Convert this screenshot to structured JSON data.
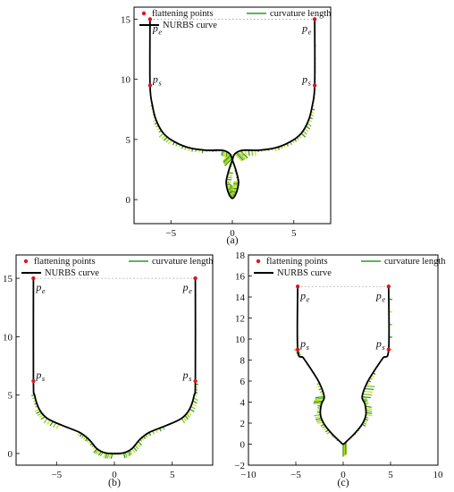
{
  "legend": {
    "flattening_points": "flattening points",
    "curvature_length": "curvature length",
    "nurbs_curve": "NURBS curve"
  },
  "colors": {
    "curve": "#000000",
    "points": "#e0141e",
    "comb_green": "#2a9a2a",
    "comb_yellow": "#d8e000",
    "comb_blue": "#3a78c8",
    "dotted": "#999999"
  },
  "labels": {
    "pe": "p",
    "pe_sub": "e",
    "ps": "p",
    "ps_sub": "s"
  },
  "chart_data": [
    {
      "type": "line",
      "caption": "(a)",
      "xlim": [
        -8,
        8
      ],
      "ylim": [
        -2,
        16
      ],
      "xticks": [
        -5,
        0,
        5
      ],
      "yticks": [
        0,
        5,
        10,
        15
      ],
      "series": [
        {
          "name": "NURBS curve",
          "x": [
            -6.7,
            -6.7,
            -6.5,
            -6.2,
            -5.6,
            -4.7,
            -3.5,
            -2.1,
            -0.8,
            -0.2,
            0,
            0.3,
            0.5,
            0.4,
            0.2,
            0,
            -0.2,
            -0.4,
            -0.5,
            -0.3,
            0,
            0.2,
            0.8,
            2.1,
            3.5,
            4.7,
            5.6,
            6.2,
            6.5,
            6.7,
            6.7
          ],
          "y": [
            15,
            9.5,
            7.8,
            6.6,
            5.5,
            4.8,
            4.3,
            4.1,
            4.1,
            3.8,
            3.3,
            2.4,
            1.5,
            0.8,
            0.3,
            0.1,
            0.3,
            0.8,
            1.5,
            2.4,
            3.3,
            3.8,
            4.1,
            4.1,
            4.3,
            4.8,
            5.5,
            6.6,
            7.8,
            9.5,
            15
          ]
        }
      ],
      "flattening_points": {
        "x": [
          -6.7,
          -6.7,
          6.7,
          6.7
        ],
        "y": [
          15,
          9.5,
          9.5,
          15
        ]
      },
      "pe_points": {
        "x": [
          -6.7,
          6.7
        ],
        "y": [
          15,
          15
        ]
      },
      "ps_points": {
        "x": [
          -6.7,
          6.7
        ],
        "y": [
          9.5,
          9.5
        ]
      }
    },
    {
      "type": "line",
      "caption": "(b)",
      "xlim": [
        -8.5,
        8.5
      ],
      "ylim": [
        -1,
        17
      ],
      "xticks": [
        -5,
        0,
        5
      ],
      "yticks": [
        0,
        5,
        10,
        15
      ],
      "series": [
        {
          "name": "NURBS curve",
          "x": [
            -7,
            -7,
            -6.9,
            -6.5,
            -5.8,
            -4.5,
            -3,
            -2.2,
            -1.5,
            -0.8,
            0,
            0.8,
            1.5,
            2.2,
            3,
            4.5,
            5.8,
            6.5,
            6.9,
            7,
            7
          ],
          "y": [
            15,
            6.2,
            5,
            3.8,
            3,
            2.4,
            1.8,
            1.2,
            0.4,
            0.05,
            0,
            0.05,
            0.4,
            1.2,
            1.8,
            2.4,
            3,
            3.8,
            5,
            6.2,
            15
          ]
        }
      ],
      "flattening_points": {
        "x": [
          -7,
          -7,
          7,
          7
        ],
        "y": [
          15,
          6.2,
          6.2,
          15
        ]
      },
      "pe_points": {
        "x": [
          -7,
          7
        ],
        "y": [
          15,
          15
        ]
      },
      "ps_points": {
        "x": [
          -7,
          7
        ],
        "y": [
          6.2,
          6.2
        ]
      }
    },
    {
      "type": "line",
      "caption": "(c)",
      "xlim": [
        -10,
        10
      ],
      "ylim": [
        -2,
        18
      ],
      "xticks": [
        -10,
        -5,
        0,
        5,
        10
      ],
      "yticks": [
        -2,
        0,
        2,
        4,
        6,
        8,
        10,
        12,
        14,
        16,
        18
      ],
      "series": [
        {
          "name": "NURBS curve",
          "x": [
            -4.8,
            -4.8,
            -4.2,
            -3.3,
            -2.5,
            -2,
            -2.3,
            -2.4,
            -2,
            -1.2,
            -0.4,
            0,
            0.4,
            1.2,
            2,
            2.4,
            2.3,
            2,
            2.5,
            3.3,
            4.2,
            4.8,
            4.8
          ],
          "y": [
            15,
            9,
            8.2,
            7,
            5.8,
            4.5,
            3.8,
            2.8,
            1.9,
            1,
            0.3,
            0,
            0.3,
            1,
            1.9,
            2.8,
            3.8,
            4.5,
            5.8,
            7,
            8.2,
            9,
            15
          ]
        }
      ],
      "flattening_points": {
        "x": [
          -4.8,
          -4.8,
          4.8,
          4.8
        ],
        "y": [
          15,
          9,
          9,
          15
        ]
      },
      "pe_points": {
        "x": [
          -4.8,
          4.8
        ],
        "y": [
          15,
          15
        ]
      },
      "ps_points": {
        "x": [
          -4.8,
          4.8
        ],
        "y": [
          9,
          9
        ]
      }
    }
  ]
}
